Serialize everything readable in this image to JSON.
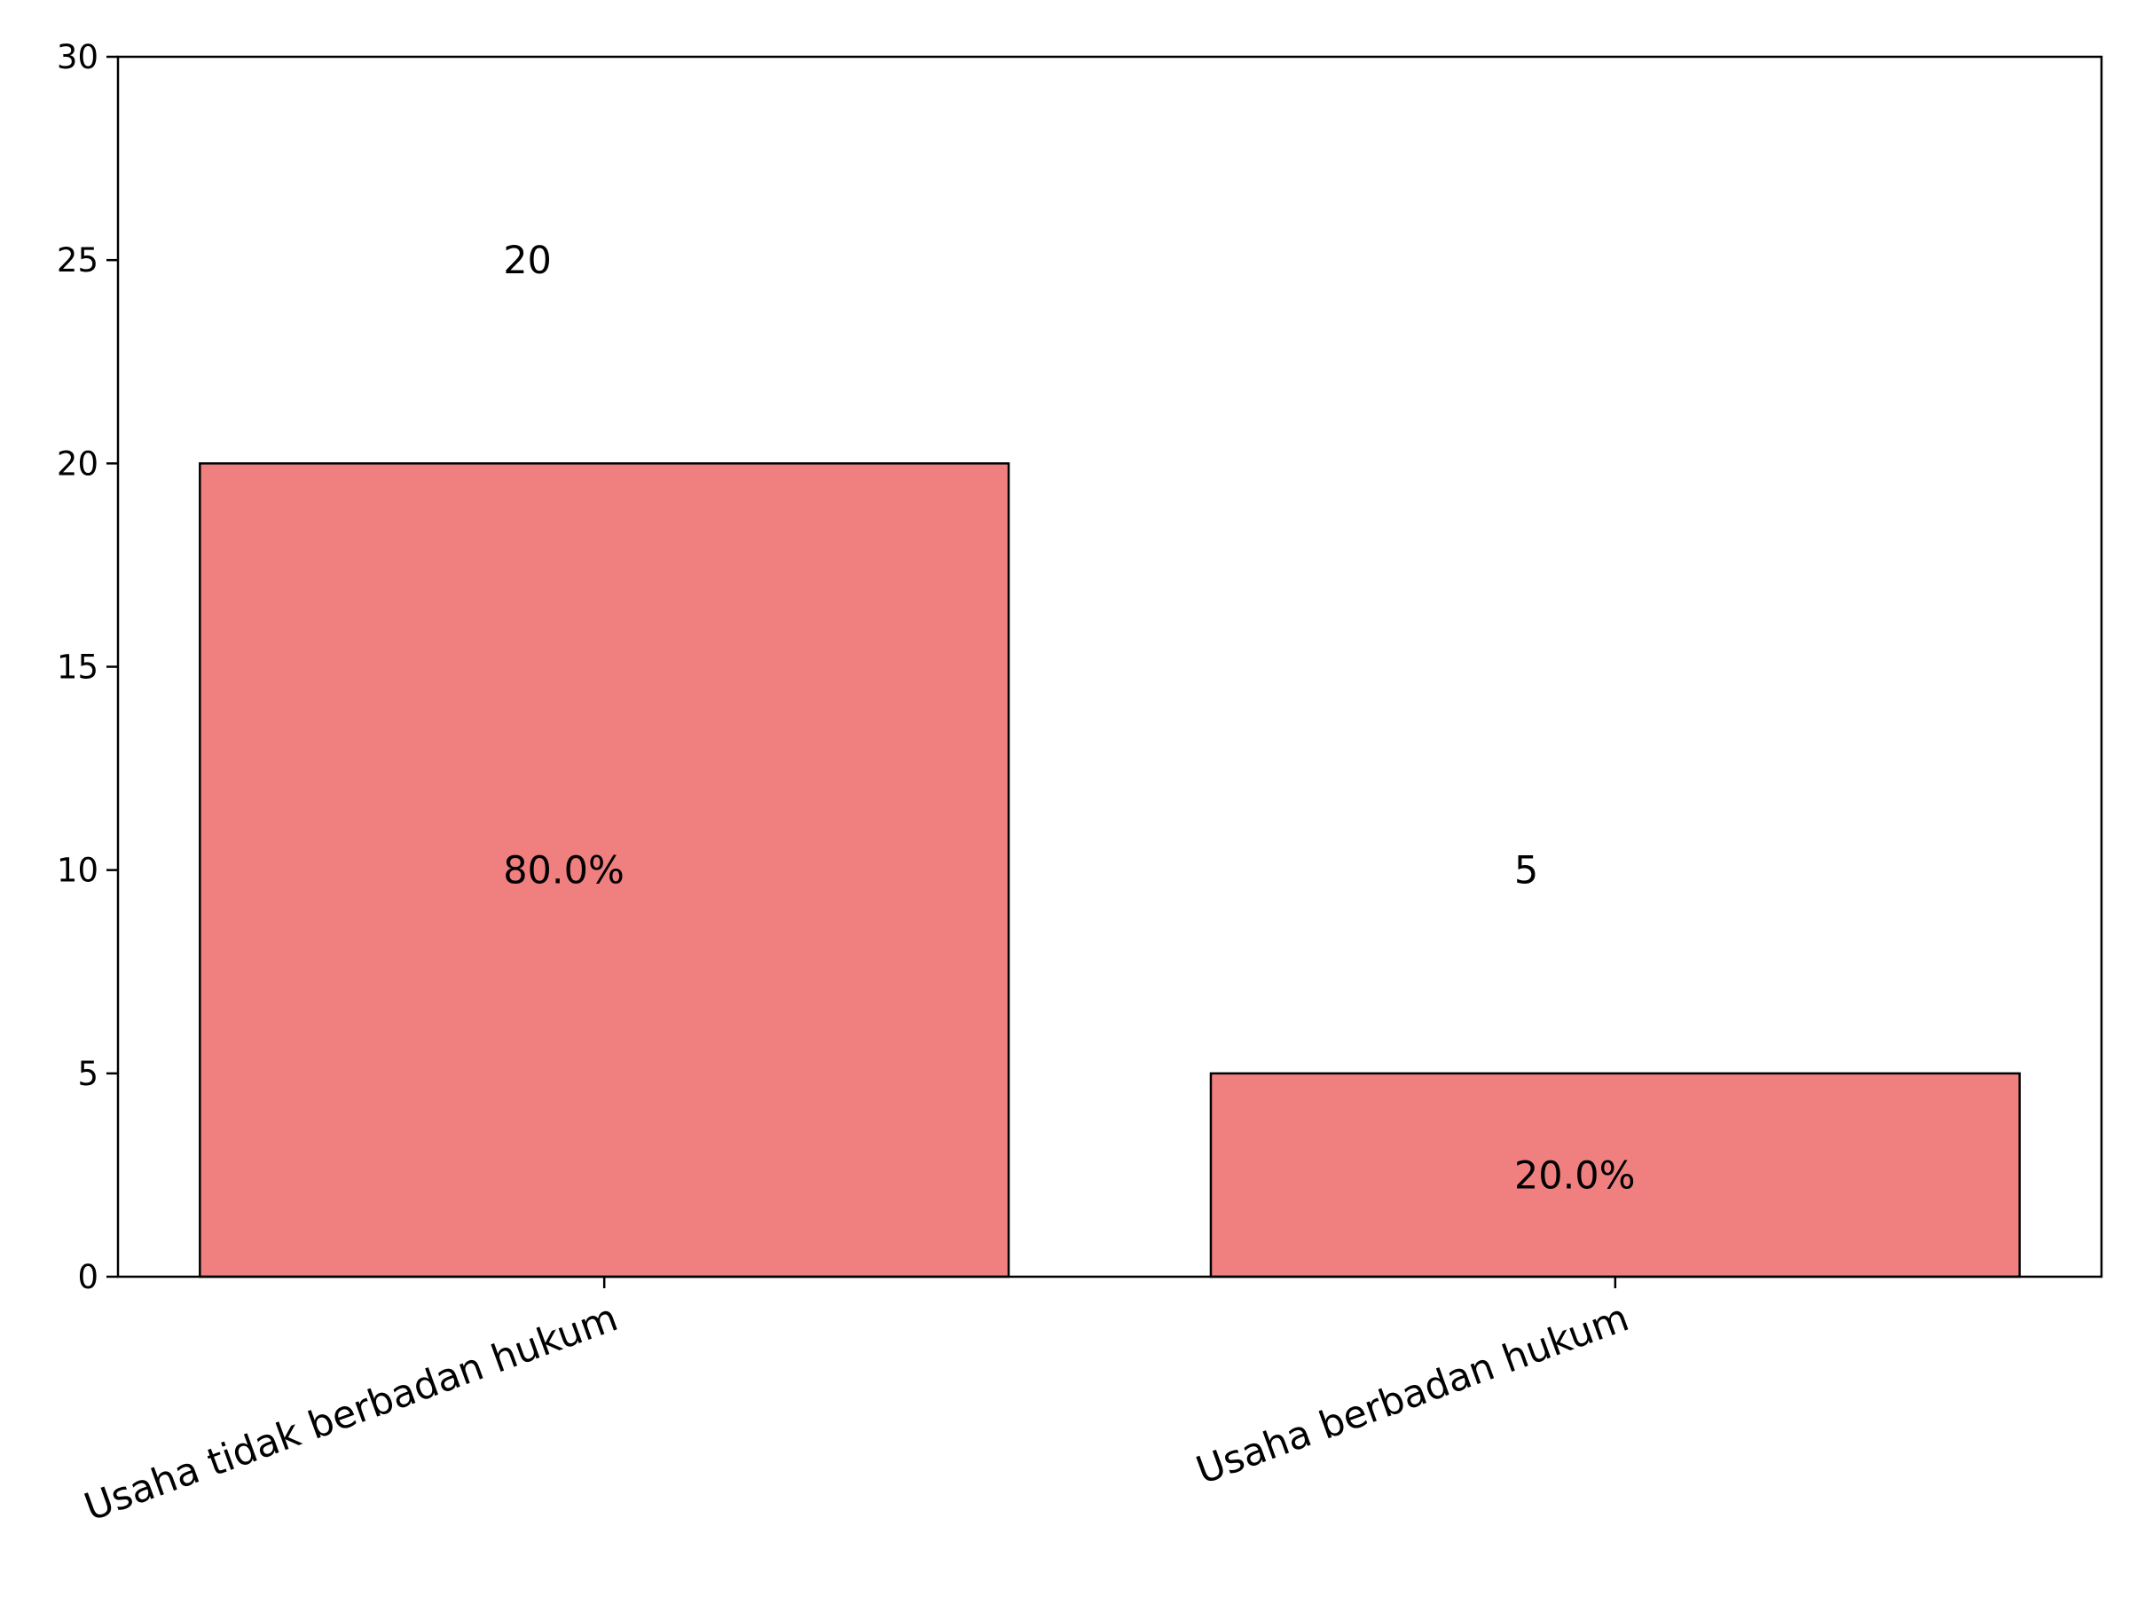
{
  "chart_data": {
    "type": "bar",
    "categories": [
      "Usaha tidak berbadan hukum",
      "Usaha berbadan hukum"
    ],
    "values": [
      20,
      5
    ],
    "percent_labels": [
      "80.0%",
      "20.0%"
    ],
    "count_labels": [
      "20",
      "5"
    ],
    "title": "",
    "xlabel": "",
    "ylabel": "",
    "ylim": [
      0,
      30
    ],
    "yticks": [
      0,
      5,
      10,
      15,
      20,
      25,
      30
    ],
    "grid": false,
    "colors": {
      "bar_fill": "#f08080",
      "bar_edge": "#000000"
    }
  }
}
